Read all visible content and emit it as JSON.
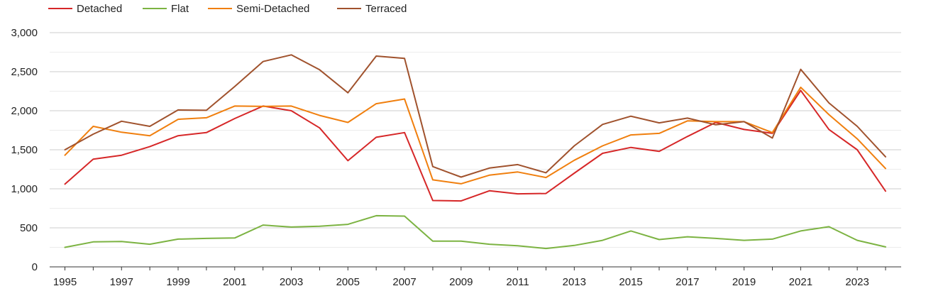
{
  "chart_data": {
    "type": "line",
    "title": "",
    "xlabel": "",
    "ylabel": "",
    "x": [
      1995,
      1996,
      1997,
      1998,
      1999,
      2000,
      2001,
      2002,
      2003,
      2004,
      2005,
      2006,
      2007,
      2008,
      2009,
      2010,
      2011,
      2012,
      2013,
      2014,
      2015,
      2016,
      2017,
      2018,
      2019,
      2020,
      2021,
      2022,
      2023,
      2024
    ],
    "x_tick_labels": [
      "1995",
      "1997",
      "1999",
      "2001",
      "2003",
      "2005",
      "2007",
      "2009",
      "2011",
      "2013",
      "2015",
      "2017",
      "2019",
      "2021",
      "2023"
    ],
    "y_tick_labels": [
      "0",
      "500",
      "1,000",
      "1,500",
      "2,000",
      "2,500",
      "3,000"
    ],
    "ylim": [
      0,
      3000
    ],
    "grid": "horizontal",
    "legend_position": "top-left",
    "series": [
      {
        "name": "Detached",
        "color": "#d62728",
        "values": [
          1060,
          1380,
          1430,
          1540,
          1680,
          1720,
          1900,
          2060,
          2000,
          1780,
          1360,
          1660,
          1720,
          850,
          845,
          975,
          935,
          940,
          1200,
          1455,
          1530,
          1480,
          1670,
          1850,
          1760,
          1710,
          2260,
          1760,
          1500,
          970
        ]
      },
      {
        "name": "Flat",
        "color": "#7cb342",
        "values": [
          250,
          320,
          325,
          290,
          355,
          365,
          370,
          535,
          510,
          520,
          545,
          655,
          650,
          330,
          330,
          290,
          270,
          235,
          275,
          340,
          460,
          350,
          385,
          365,
          340,
          355,
          460,
          515,
          340,
          255
        ]
      },
      {
        "name": "Semi-Detached",
        "color": "#f07f0e",
        "values": [
          1430,
          1800,
          1725,
          1680,
          1890,
          1910,
          2060,
          2055,
          2060,
          1940,
          1850,
          2090,
          2150,
          1115,
          1065,
          1175,
          1215,
          1145,
          1365,
          1550,
          1690,
          1710,
          1870,
          1860,
          1860,
          1720,
          2300,
          1950,
          1640,
          1260
        ]
      },
      {
        "name": "Terraced",
        "color": "#a0522d",
        "values": [
          1500,
          1700,
          1865,
          1800,
          2010,
          2005,
          2310,
          2630,
          2715,
          2525,
          2230,
          2700,
          2670,
          1285,
          1150,
          1265,
          1310,
          1205,
          1550,
          1825,
          1930,
          1845,
          1905,
          1820,
          1860,
          1650,
          2530,
          2100,
          1800,
          1410
        ]
      }
    ]
  }
}
